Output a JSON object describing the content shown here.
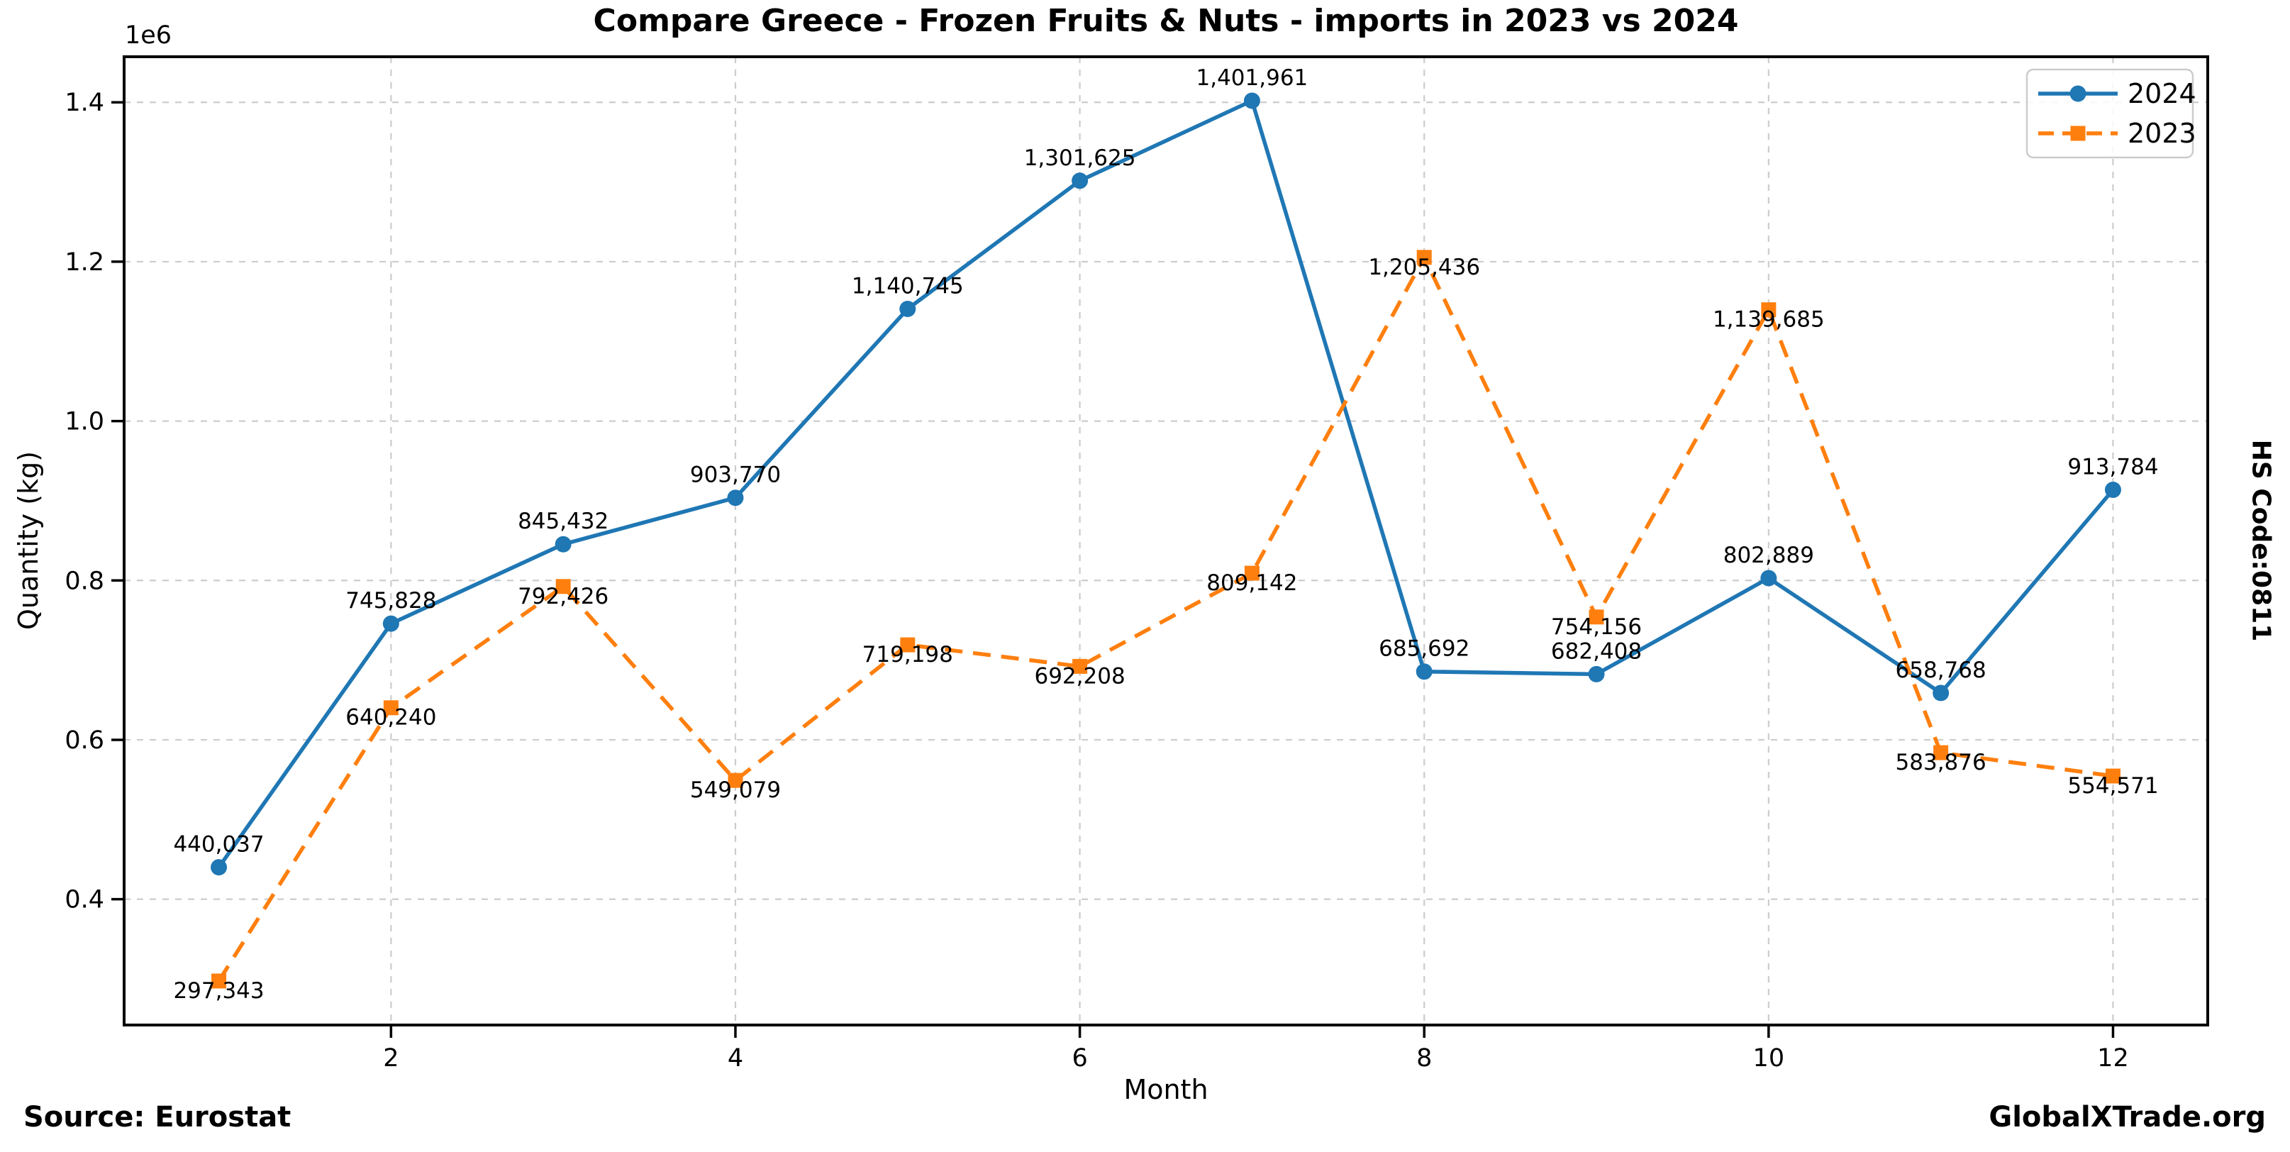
{
  "chart_data": {
    "type": "line",
    "title": "Compare Greece - Frozen Fruits & Nuts - imports in 2023 vs 2024",
    "xlabel": "Month",
    "ylabel": "Quantity (kg)",
    "y_offset_text": "1e6",
    "months": [
      1,
      2,
      3,
      4,
      5,
      6,
      7,
      8,
      9,
      10,
      11,
      12
    ],
    "x_ticks": [
      2,
      4,
      6,
      8,
      10,
      12
    ],
    "x_tick_labels": [
      "2",
      "4",
      "6",
      "8",
      "10",
      "12"
    ],
    "y_ticks": [
      400000,
      600000,
      800000,
      1000000,
      1200000,
      1400000
    ],
    "y_tick_labels": [
      "0.4",
      "0.6",
      "0.8",
      "1.0",
      "1.2",
      "1.4"
    ],
    "xlim": [
      0.45,
      12.55
    ],
    "ylim": [
      242112,
      1457192
    ],
    "grid": true,
    "legend_position": "upper right",
    "series": [
      {
        "name": "2024",
        "color": "#1f77b4",
        "line_style": "solid",
        "marker": "circle",
        "values": [
          440037,
          745828,
          845432,
          903770,
          1140745,
          1301625,
          1401961,
          685692,
          682408,
          802889,
          658768,
          913784
        ],
        "labels": [
          "440,037",
          "745,828",
          "845,432",
          "903,770",
          "1,140,745",
          "1,301,625",
          "1,401,961",
          "685,692",
          "682,408",
          "802,889",
          "658,768",
          "913,784"
        ]
      },
      {
        "name": "2023",
        "color": "#ff7f0e",
        "line_style": "dashed",
        "marker": "square",
        "values": [
          297343,
          640240,
          792426,
          549079,
          719198,
          692208,
          809142,
          1205436,
          754156,
          1139685,
          583876,
          554571
        ],
        "labels": [
          "297,343",
          "640,240",
          "792,426",
          "549,079",
          "719,198",
          "692,208",
          "809,142",
          "1,205,436",
          "754,156",
          "1,139,685",
          "583,876",
          "554,571"
        ]
      }
    ],
    "colors": {
      "grid": "#cccccc",
      "spine": "#000000",
      "text": "#000000",
      "legend_border": "#cccccc",
      "legend_background": "#ffffff"
    }
  },
  "side_label": "HS Code:0811",
  "footer": {
    "source": "Source: Eurostat",
    "brand": "GlobalXTrade.org"
  }
}
